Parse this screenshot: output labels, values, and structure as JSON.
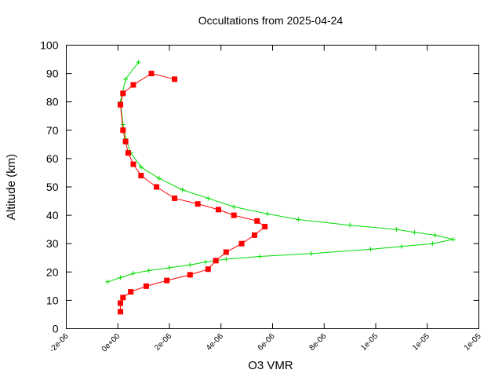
{
  "chart_data": {
    "type": "line",
    "title": "Occultations from 2025-04-24",
    "xlabel": "O3 VMR",
    "ylabel": "Altitude (km)",
    "xlim": [
      -2e-06,
      1.4e-05
    ],
    "ylim": [
      0,
      100
    ],
    "x_ticks": [
      -2e-06,
      0,
      2e-06,
      4e-06,
      6e-06,
      8e-06,
      1e-05,
      1.2e-05,
      1.4e-05
    ],
    "x_tick_labels": [
      "-2e-06",
      "0e+00",
      "2e-06",
      "4e-06",
      "6e-06",
      "8e-06",
      "1e-05",
      "1e-05",
      "1e-05"
    ],
    "y_ticks": [
      0,
      10,
      20,
      30,
      40,
      50,
      60,
      70,
      80,
      90,
      100
    ],
    "y_tick_labels": [
      "0",
      "10",
      "20",
      "30",
      "40",
      "50",
      "60",
      "70",
      "80",
      "90",
      "100"
    ],
    "grid": false,
    "legend": false,
    "series": [
      {
        "color": "#00dd00",
        "marker": "plus",
        "x": [
          -4e-07,
          1e-07,
          6e-07,
          1.2e-06,
          2e-06,
          2.8e-06,
          3.4e-06,
          4.2e-06,
          5.5e-06,
          7.5e-06,
          9.8e-06,
          1.1e-05,
          1.22e-05,
          1.3e-05,
          1.23e-05,
          1.15e-05,
          1.08e-05,
          9e-06,
          7e-06,
          5.8e-06,
          4.5e-06,
          3.5e-06,
          2.5e-06,
          1.6e-06,
          9e-07,
          5e-07,
          3e-07,
          2e-07,
          1e-07,
          3e-07,
          8e-07
        ],
        "y": [
          16.5,
          18,
          19.5,
          20.5,
          21.5,
          22.5,
          23.5,
          24.5,
          25.5,
          26.5,
          28,
          29,
          30,
          31.5,
          33,
          34,
          35,
          36.5,
          38.5,
          40.5,
          43,
          46,
          49,
          53,
          57,
          62,
          67,
          72,
          80,
          88,
          94
        ]
      },
      {
        "color": "#ff0000",
        "marker": "square",
        "x": [
          1e-07,
          1e-07,
          2e-07,
          5e-07,
          1.1e-06,
          1.9e-06,
          2.8e-06,
          3.5e-06,
          3.8e-06,
          4.2e-06,
          4.8e-06,
          5.3e-06,
          5.7e-06,
          5.4e-06,
          4.5e-06,
          3.9e-06,
          3.1e-06,
          2.2e-06,
          1.5e-06,
          9e-07,
          6e-07,
          4e-07,
          3e-07,
          2e-07,
          1e-07,
          2e-07,
          6e-07,
          1.3e-06,
          2.2e-06
        ],
        "y": [
          6,
          9,
          11,
          13,
          15,
          17,
          19,
          21,
          24,
          27,
          30,
          33,
          36,
          38,
          40,
          42,
          44,
          46,
          50,
          54,
          58,
          62,
          66,
          70,
          79,
          83,
          86,
          90,
          88
        ]
      }
    ]
  }
}
